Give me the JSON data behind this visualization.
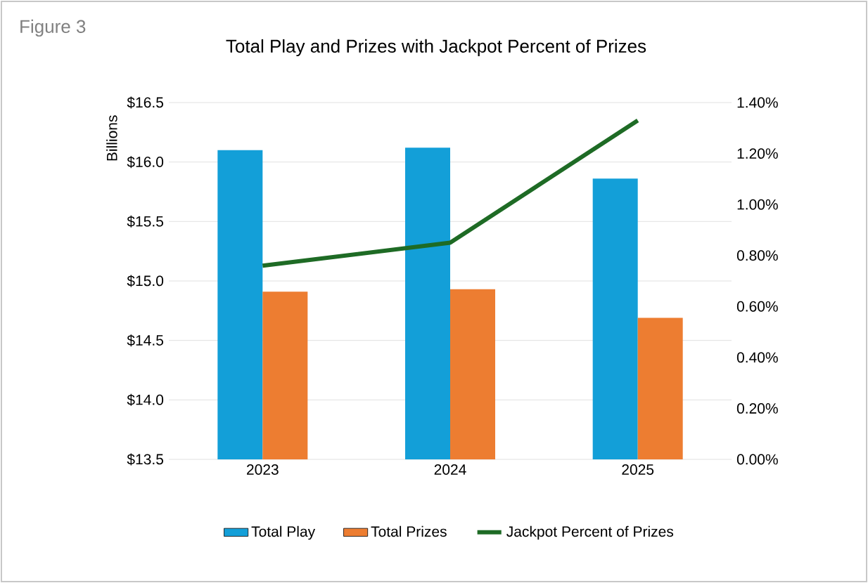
{
  "chart_data": {
    "type": "bar",
    "title": "Total Play and Prizes with Jackpot Percent of Prizes",
    "ylabel": "Billions",
    "annotations": [
      "Figure 3"
    ],
    "categories": [
      "2023",
      "2024",
      "2025"
    ],
    "series": [
      {
        "name": "Total Play",
        "color": "#139fd8",
        "values": [
          16.1,
          16.12,
          15.86
        ]
      },
      {
        "name": "Total Prizes",
        "color": "#ed7d31",
        "values": [
          14.91,
          14.93,
          14.69
        ]
      },
      {
        "name": "Jackpot Percent of Prizes",
        "type": "line",
        "axis": "y2",
        "color": "#1e6b25",
        "values": [
          0.76,
          0.85,
          1.33
        ]
      }
    ],
    "ylim": [
      13.5,
      16.5
    ],
    "yticks": [
      {
        "value": 13.5,
        "label": "$13.5"
      },
      {
        "value": 14.0,
        "label": "$14.0"
      },
      {
        "value": 14.5,
        "label": "$14.5"
      },
      {
        "value": 15.0,
        "label": "$15.0"
      },
      {
        "value": 15.5,
        "label": "$15.5"
      },
      {
        "value": 16.0,
        "label": "$16.0"
      },
      {
        "value": 16.5,
        "label": "$16.5"
      }
    ],
    "y2lim": [
      0,
      1.4
    ],
    "y2ticks": [
      {
        "value": 0,
        "label": "0.00%"
      },
      {
        "value": 0.2,
        "label": "0.20%"
      },
      {
        "value": 0.4,
        "label": "0.40%"
      },
      {
        "value": 0.6,
        "label": "0.60%"
      },
      {
        "value": 0.8,
        "label": "0.80%"
      },
      {
        "value": 1.0,
        "label": "1.00%"
      },
      {
        "value": 1.2,
        "label": "1.20%"
      },
      {
        "value": 1.4,
        "label": "1.40%"
      }
    ],
    "grid": "y",
    "legend": "bottom",
    "marker": "none",
    "line_style": "solid"
  }
}
